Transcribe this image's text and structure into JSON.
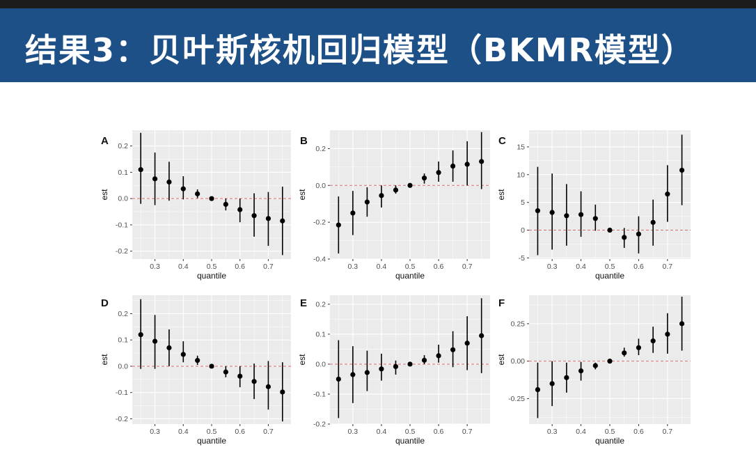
{
  "slide": {
    "title": "结果3：贝叶斯核机回归模型（BKMR模型）"
  },
  "style": {
    "title_bar_color": "#1e5088",
    "panel_background": "#ebebeb",
    "grid_color": "#ffffff",
    "point_color": "#000000",
    "zero_line_color": "#e06666"
  },
  "chart_data": [
    {
      "type": "scatter",
      "panel": "A",
      "title": "",
      "xlabel": "quantile",
      "ylabel": "est",
      "x": [
        0.25,
        0.3,
        0.35,
        0.4,
        0.45,
        0.5,
        0.55,
        0.6,
        0.65,
        0.7,
        0.75
      ],
      "y": [
        0.11,
        0.075,
        0.063,
        0.037,
        0.018,
        0.0,
        -0.022,
        -0.042,
        -0.065,
        -0.076,
        -0.085
      ],
      "lower": [
        -0.02,
        -0.025,
        -0.008,
        -0.003,
        0.002,
        -0.002,
        -0.045,
        -0.09,
        -0.145,
        -0.18,
        -0.215
      ],
      "upper": [
        0.25,
        0.175,
        0.14,
        0.085,
        0.035,
        0.002,
        0.0,
        0.0,
        0.02,
        0.025,
        0.045
      ],
      "xlim": [
        0.22,
        0.78
      ],
      "ylim": [
        -0.23,
        0.26
      ],
      "xticks": [
        "0.3",
        "0.4",
        "0.5",
        "0.6",
        "0.7"
      ],
      "yticks": [
        "-0.2",
        "-0.1",
        "0.0",
        "0.1",
        "0.2"
      ],
      "grid": true
    },
    {
      "type": "scatter",
      "panel": "B",
      "title": "",
      "xlabel": "quantile",
      "ylabel": "est",
      "x": [
        0.25,
        0.3,
        0.35,
        0.4,
        0.45,
        0.5,
        0.55,
        0.6,
        0.65,
        0.7,
        0.75
      ],
      "y": [
        -0.215,
        -0.15,
        -0.09,
        -0.055,
        -0.025,
        0.0,
        0.04,
        0.07,
        0.105,
        0.115,
        0.13
      ],
      "lower": [
        -0.37,
        -0.27,
        -0.17,
        -0.12,
        -0.045,
        -0.005,
        0.01,
        0.02,
        0.02,
        0.0,
        -0.02
      ],
      "upper": [
        -0.06,
        -0.03,
        -0.01,
        0.0,
        0.0,
        0.005,
        0.065,
        0.13,
        0.19,
        0.24,
        0.29
      ],
      "xlim": [
        0.22,
        0.78
      ],
      "ylim": [
        -0.4,
        0.3
      ],
      "xticks": [
        "0.3",
        "0.4",
        "0.5",
        "0.6",
        "0.7"
      ],
      "yticks": [
        "-0.4",
        "-0.2",
        "0.0",
        "0.2"
      ],
      "grid": true
    },
    {
      "type": "scatter",
      "panel": "C",
      "title": "",
      "xlabel": "quantile",
      "ylabel": "est",
      "x": [
        0.25,
        0.3,
        0.35,
        0.4,
        0.45,
        0.5,
        0.55,
        0.6,
        0.65,
        0.7,
        0.75
      ],
      "y": [
        3.5,
        3.2,
        2.6,
        2.8,
        2.1,
        0.0,
        -1.3,
        -0.7,
        1.4,
        6.5,
        10.8
      ],
      "lower": [
        -4.5,
        -3.5,
        -2.8,
        -1.2,
        -0.1,
        -0.1,
        -3.2,
        -4.2,
        -2.8,
        1.5,
        4.5
      ],
      "upper": [
        11.4,
        10.2,
        8.3,
        7.0,
        4.6,
        0.1,
        0.4,
        2.5,
        5.5,
        11.7,
        17.2
      ],
      "xlim": [
        0.22,
        0.78
      ],
      "ylim": [
        -5.2,
        18
      ],
      "xticks": [
        "0.3",
        "0.4",
        "0.5",
        "0.6",
        "0.7"
      ],
      "yticks": [
        "-5",
        "0",
        "5",
        "10",
        "15"
      ],
      "grid": true
    },
    {
      "type": "scatter",
      "panel": "D",
      "title": "",
      "xlabel": "quantile",
      "ylabel": "est",
      "x": [
        0.25,
        0.3,
        0.35,
        0.4,
        0.45,
        0.5,
        0.55,
        0.6,
        0.65,
        0.7,
        0.75
      ],
      "y": [
        0.12,
        0.095,
        0.07,
        0.045,
        0.022,
        0.0,
        -0.022,
        -0.038,
        -0.058,
        -0.078,
        -0.098
      ],
      "lower": [
        -0.01,
        -0.01,
        0.0,
        0.015,
        0.005,
        -0.002,
        -0.042,
        -0.08,
        -0.125,
        -0.165,
        -0.21
      ],
      "upper": [
        0.255,
        0.195,
        0.14,
        0.095,
        0.04,
        0.002,
        0.0,
        0.0,
        0.01,
        0.02,
        0.015
      ],
      "xlim": [
        0.22,
        0.78
      ],
      "ylim": [
        -0.22,
        0.27
      ],
      "xticks": [
        "0.3",
        "0.4",
        "0.5",
        "0.6",
        "0.7"
      ],
      "yticks": [
        "-0.2",
        "-0.1",
        "0.0",
        "0.1",
        "0.2"
      ],
      "grid": true
    },
    {
      "type": "scatter",
      "panel": "E",
      "title": "",
      "xlabel": "quantile",
      "ylabel": "est",
      "x": [
        0.25,
        0.3,
        0.35,
        0.4,
        0.45,
        0.5,
        0.55,
        0.6,
        0.65,
        0.7,
        0.75
      ],
      "y": [
        -0.05,
        -0.035,
        -0.028,
        -0.016,
        -0.008,
        0.0,
        0.013,
        0.028,
        0.048,
        0.07,
        0.095
      ],
      "lower": [
        -0.18,
        -0.13,
        -0.09,
        -0.055,
        -0.035,
        -0.003,
        0.0,
        0.005,
        -0.01,
        -0.02,
        -0.03
      ],
      "upper": [
        0.08,
        0.06,
        0.045,
        0.035,
        0.012,
        0.003,
        0.03,
        0.065,
        0.11,
        0.16,
        0.22
      ],
      "xlim": [
        0.22,
        0.78
      ],
      "ylim": [
        -0.2,
        0.23
      ],
      "xticks": [
        "0.3",
        "0.4",
        "0.5",
        "0.6",
        "0.7"
      ],
      "yticks": [
        "-0.2",
        "-0.1",
        "0.0",
        "0.1",
        "0.2"
      ],
      "grid": true
    },
    {
      "type": "scatter",
      "panel": "F",
      "title": "",
      "xlabel": "quantile",
      "ylabel": "est",
      "x": [
        0.25,
        0.3,
        0.35,
        0.4,
        0.45,
        0.5,
        0.55,
        0.6,
        0.65,
        0.7,
        0.75
      ],
      "y": [
        -0.19,
        -0.15,
        -0.11,
        -0.065,
        -0.03,
        0.0,
        0.055,
        0.09,
        0.135,
        0.18,
        0.25
      ],
      "lower": [
        -0.38,
        -0.3,
        -0.21,
        -0.13,
        -0.055,
        -0.005,
        0.03,
        0.04,
        0.055,
        0.05,
        0.07
      ],
      "upper": [
        -0.01,
        0.0,
        -0.01,
        -0.005,
        -0.01,
        0.005,
        0.09,
        0.15,
        0.23,
        0.32,
        0.43
      ],
      "xlim": [
        0.22,
        0.78
      ],
      "ylim": [
        -0.42,
        0.44
      ],
      "xticks": [
        "0.3",
        "0.4",
        "0.5",
        "0.6",
        "0.7"
      ],
      "yticks": [
        "-0.25",
        "0.00",
        "0.25"
      ],
      "grid": true
    }
  ]
}
